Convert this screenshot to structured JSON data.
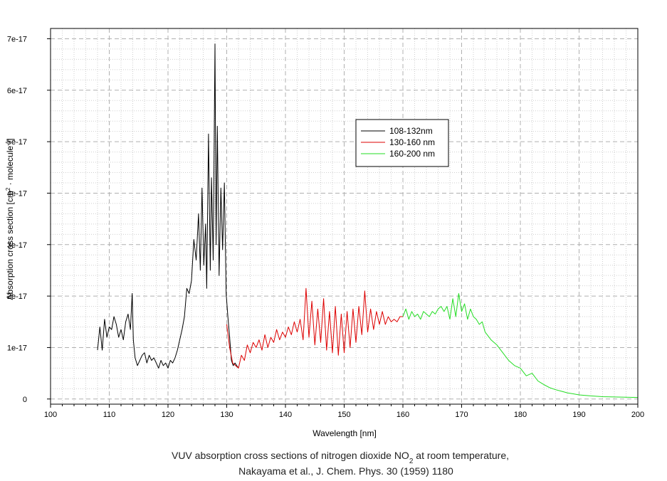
{
  "chart_data": {
    "type": "line",
    "xlabel": "Wavelength [nm]",
    "ylabel": {
      "prefix": "Absorption cross section [cm",
      "sup1": "2",
      "middle": " · molecule",
      "sup2": "-1",
      "suffix": "]"
    },
    "xlim": [
      100,
      200
    ],
    "ylim": [
      -1e-18,
      7.2e-17
    ],
    "x_ticks": [
      100,
      110,
      120,
      130,
      140,
      150,
      160,
      170,
      180,
      190,
      200
    ],
    "x_tick_labels": [
      "100",
      "110",
      "120",
      "130",
      "140",
      "150",
      "160",
      "170",
      "180",
      "190",
      "200"
    ],
    "y_ticks": [
      0,
      1e-17,
      2e-17,
      3e-17,
      4e-17,
      5e-17,
      6e-17,
      7e-17
    ],
    "y_tick_labels": [
      "0",
      "1e-17",
      "2e-17",
      "3e-17",
      "4e-17",
      "5e-17",
      "6e-17",
      "7e-17"
    ],
    "grid": true,
    "legend_position": "upper-center",
    "caption": {
      "line1_prefix": "VUV absorption cross sections of nitrogen dioxide NO",
      "line1_sub": "2",
      "line1_suffix": " at room temperature,",
      "line2": "Nakayama et al., J. Chem. Phys. 30 (1959) 1180"
    },
    "series": [
      {
        "name": "108-132nm",
        "color": "#000000",
        "x": [
          108.0,
          108.4,
          108.8,
          109.2,
          109.6,
          110.0,
          110.4,
          110.8,
          111.2,
          111.6,
          112.0,
          112.4,
          112.8,
          113.2,
          113.6,
          113.9,
          114.1,
          114.4,
          114.8,
          115.2,
          115.6,
          116.0,
          116.4,
          116.8,
          117.2,
          117.6,
          118.0,
          118.4,
          118.8,
          119.2,
          119.6,
          120.0,
          120.4,
          120.8,
          121.2,
          121.6,
          122.0,
          122.4,
          122.8,
          123.2,
          123.6,
          124.0,
          124.4,
          124.8,
          125.2,
          125.5,
          125.8,
          126.1,
          126.4,
          126.6,
          126.9,
          127.2,
          127.4,
          127.7,
          128.0,
          128.2,
          128.4,
          128.7,
          129.0,
          129.3,
          129.6,
          129.9,
          130.2,
          130.5,
          130.8,
          131.1,
          131.4,
          131.7,
          132.0
        ],
        "y": [
          9.5e-18,
          1.4e-17,
          9.5e-18,
          1.55e-17,
          1.2e-17,
          1.4e-17,
          1.35e-17,
          1.6e-17,
          1.45e-17,
          1.2e-17,
          1.35e-17,
          1.15e-17,
          1.5e-17,
          1.65e-17,
          1.35e-17,
          2.05e-17,
          1.15e-17,
          8e-18,
          6.5e-18,
          7.5e-18,
          8.5e-18,
          9e-18,
          7e-18,
          8.5e-18,
          7.5e-18,
          8e-18,
          7e-18,
          6e-18,
          7.5e-18,
          6.5e-18,
          7e-18,
          6e-18,
          7.5e-18,
          7e-18,
          8e-18,
          9.5e-18,
          1.15e-17,
          1.35e-17,
          1.6e-17,
          2.15e-17,
          2.05e-17,
          2.3e-17,
          3.1e-17,
          2.7e-17,
          3.6e-17,
          2.5e-17,
          4.1e-17,
          2.6e-17,
          3.4e-17,
          2.15e-17,
          5.15e-17,
          2.5e-17,
          4.3e-17,
          2.7e-17,
          6.9e-17,
          3e-17,
          5.3e-17,
          2.4e-17,
          4.1e-17,
          2.9e-17,
          4.2e-17,
          2.05e-17,
          1.6e-17,
          1.2e-17,
          7.5e-18,
          6.5e-18,
          7e-18,
          6.5e-18,
          6e-18
        ]
      },
      {
        "name": "130-160 nm",
        "color": "#dd0000",
        "x": [
          130.0,
          130.5,
          131.0,
          131.5,
          132.0,
          132.5,
          133.0,
          133.5,
          134.0,
          134.5,
          135.0,
          135.5,
          136.0,
          136.5,
          137.0,
          137.5,
          138.0,
          138.5,
          139.0,
          139.5,
          140.0,
          140.5,
          141.0,
          141.5,
          142.0,
          142.5,
          143.0,
          143.5,
          144.0,
          144.5,
          145.0,
          145.5,
          146.0,
          146.5,
          147.0,
          147.5,
          148.0,
          148.5,
          149.0,
          149.5,
          150.0,
          150.5,
          151.0,
          151.5,
          152.0,
          152.5,
          153.0,
          153.5,
          154.0,
          154.5,
          155.0,
          155.5,
          156.0,
          156.5,
          157.0,
          157.5,
          158.0,
          158.5,
          159.0,
          159.5,
          160.0
        ],
        "y": [
          1.45e-17,
          1e-17,
          7e-18,
          6.5e-18,
          6e-18,
          8.5e-18,
          7.5e-18,
          1.05e-17,
          9e-18,
          1.1e-17,
          1e-17,
          1.15e-17,
          9.5e-18,
          1.25e-17,
          1e-17,
          1.2e-17,
          1.1e-17,
          1.35e-17,
          1.15e-17,
          1.3e-17,
          1.2e-17,
          1.4e-17,
          1.25e-17,
          1.5e-17,
          1.3e-17,
          1.55e-17,
          1.15e-17,
          2.15e-17,
          1.2e-17,
          1.9e-17,
          1.05e-17,
          1.75e-17,
          1.1e-17,
          1.95e-17,
          9.5e-18,
          1.7e-17,
          9e-18,
          1.8e-17,
          8.5e-18,
          1.65e-17,
          9e-18,
          1.7e-17,
          1e-17,
          1.75e-17,
          1.1e-17,
          1.8e-17,
          1.25e-17,
          2.1e-17,
          1.3e-17,
          1.75e-17,
          1.35e-17,
          1.7e-17,
          1.45e-17,
          1.7e-17,
          1.45e-17,
          1.6e-17,
          1.5e-17,
          1.55e-17,
          1.5e-17,
          1.6e-17,
          1.6e-17
        ]
      },
      {
        "name": "160-200 nm",
        "color": "#22dd22",
        "x": [
          160.0,
          160.5,
          161.0,
          161.5,
          162.0,
          162.5,
          163.0,
          163.5,
          164.0,
          164.5,
          165.0,
          165.5,
          166.0,
          166.5,
          167.0,
          167.5,
          168.0,
          168.5,
          169.0,
          169.5,
          170.0,
          170.5,
          171.0,
          171.5,
          172.0,
          172.5,
          173.0,
          173.5,
          174.0,
          175.0,
          176.0,
          177.0,
          178.0,
          179.0,
          180.0,
          181.0,
          182.0,
          183.0,
          184.0,
          185.0,
          186.0,
          187.0,
          188.0,
          189.0,
          190.0,
          192.0,
          194.0,
          196.0,
          198.0,
          200.0
        ],
        "y": [
          1.6e-17,
          1.75e-17,
          1.55e-17,
          1.7e-17,
          1.6e-17,
          1.65e-17,
          1.55e-17,
          1.7e-17,
          1.65e-17,
          1.6e-17,
          1.7e-17,
          1.65e-17,
          1.75e-17,
          1.8e-17,
          1.7e-17,
          1.8e-17,
          1.55e-17,
          1.95e-17,
          1.6e-17,
          2.05e-17,
          1.7e-17,
          1.85e-17,
          1.55e-17,
          1.75e-17,
          1.6e-17,
          1.55e-17,
          1.45e-17,
          1.5e-17,
          1.3e-17,
          1.15e-17,
          1.05e-17,
          9e-18,
          7.5e-18,
          6.5e-18,
          6e-18,
          4.5e-18,
          5e-18,
          3.5e-18,
          2.8e-18,
          2.2e-18,
          1.8e-18,
          1.5e-18,
          1.2e-18,
          1e-18,
          8e-19,
          6e-19,
          4.5e-19,
          4e-19,
          3.5e-19,
          3e-19
        ]
      }
    ]
  }
}
